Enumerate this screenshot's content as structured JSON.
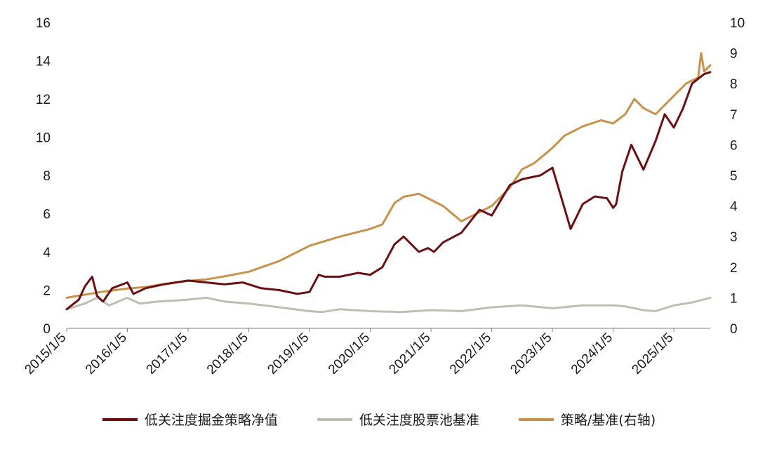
{
  "chart_data": {
    "type": "line",
    "title": "",
    "xlabel": "",
    "ylabel": "",
    "x_ticks": [
      "2015/1/5",
      "2016/1/5",
      "2017/1/5",
      "2018/1/5",
      "2019/1/5",
      "2020/1/5",
      "2021/1/5",
      "2022/1/5",
      "2023/1/5",
      "2024/1/5",
      "2025/1/5"
    ],
    "ylim_left": [
      0,
      16
    ],
    "yticks_left": [
      "0",
      "2",
      "4",
      "6",
      "8",
      "10",
      "12",
      "14",
      "16"
    ],
    "ylim_right": [
      0,
      10
    ],
    "yticks_right": [
      "0",
      "1",
      "2",
      "3",
      "4",
      "5",
      "6",
      "7",
      "8",
      "9",
      "10"
    ],
    "grid": false,
    "legend_position": "bottom",
    "series": [
      {
        "name": "低关注度掘金策略净值",
        "axis": "left",
        "color": "#6b0f13",
        "x": [
          2015.0,
          2015.2,
          2015.3,
          2015.42,
          2015.5,
          2015.6,
          2015.75,
          2016.0,
          2016.1,
          2016.3,
          2016.6,
          2017.0,
          2017.3,
          2017.6,
          2017.9,
          2018.2,
          2018.5,
          2018.8,
          2019.0,
          2019.15,
          2019.25,
          2019.5,
          2019.8,
          2020.0,
          2020.2,
          2020.4,
          2020.55,
          2020.8,
          2020.95,
          2021.05,
          2021.2,
          2021.5,
          2021.8,
          2022.0,
          2022.3,
          2022.5,
          2022.8,
          2023.0,
          2023.15,
          2023.3,
          2023.5,
          2023.7,
          2023.9,
          2024.0,
          2024.05,
          2024.15,
          2024.3,
          2024.5,
          2024.7,
          2024.85,
          2025.0,
          2025.15,
          2025.3,
          2025.5,
          2025.6
        ],
        "values": [
          1.0,
          1.5,
          2.2,
          2.7,
          1.7,
          1.4,
          2.1,
          2.4,
          1.8,
          2.1,
          2.3,
          2.5,
          2.4,
          2.3,
          2.4,
          2.1,
          2.0,
          1.8,
          1.9,
          2.8,
          2.7,
          2.7,
          2.9,
          2.8,
          3.2,
          4.4,
          4.8,
          4.0,
          4.2,
          4.0,
          4.5,
          5.0,
          6.2,
          5.9,
          7.5,
          7.8,
          8.0,
          8.4,
          6.8,
          5.2,
          6.5,
          6.9,
          6.8,
          6.3,
          6.5,
          8.2,
          9.6,
          8.3,
          9.8,
          11.2,
          10.5,
          11.5,
          12.8,
          13.3,
          13.4
        ]
      },
      {
        "name": "低关注度股票池基准",
        "axis": "left",
        "color": "#bebfb2",
        "x": [
          2015.0,
          2015.3,
          2015.5,
          2015.7,
          2016.0,
          2016.2,
          2016.5,
          2017.0,
          2017.3,
          2017.6,
          2018.0,
          2018.5,
          2019.0,
          2019.2,
          2019.5,
          2020.0,
          2020.5,
          2021.0,
          2021.5,
          2022.0,
          2022.5,
          2023.0,
          2023.5,
          2024.0,
          2024.2,
          2024.5,
          2024.7,
          2025.0,
          2025.3,
          2025.6
        ],
        "values": [
          1.0,
          1.3,
          1.6,
          1.2,
          1.6,
          1.3,
          1.4,
          1.5,
          1.6,
          1.4,
          1.3,
          1.1,
          0.9,
          0.85,
          1.0,
          0.9,
          0.85,
          0.95,
          0.9,
          1.1,
          1.2,
          1.05,
          1.2,
          1.2,
          1.15,
          0.95,
          0.9,
          1.2,
          1.35,
          1.6
        ]
      },
      {
        "name": "策略/基准(右轴)",
        "axis": "right",
        "color": "#c8924b",
        "x": [
          2015.0,
          2015.3,
          2015.6,
          2016.0,
          2016.3,
          2016.6,
          2017.0,
          2017.3,
          2017.6,
          2018.0,
          2018.5,
          2019.0,
          2019.5,
          2020.0,
          2020.2,
          2020.4,
          2020.55,
          2020.8,
          2021.0,
          2021.2,
          2021.5,
          2021.8,
          2022.0,
          2022.3,
          2022.5,
          2022.7,
          2023.0,
          2023.2,
          2023.5,
          2023.8,
          2024.0,
          2024.2,
          2024.35,
          2024.5,
          2024.7,
          2024.85,
          2025.0,
          2025.2,
          2025.4,
          2025.45,
          2025.5,
          2025.6
        ],
        "values": [
          1.0,
          1.1,
          1.2,
          1.3,
          1.35,
          1.45,
          1.55,
          1.6,
          1.7,
          1.85,
          2.2,
          2.7,
          3.0,
          3.25,
          3.4,
          4.1,
          4.3,
          4.4,
          4.2,
          4.0,
          3.5,
          3.8,
          4.0,
          4.6,
          5.2,
          5.4,
          5.9,
          6.3,
          6.6,
          6.8,
          6.7,
          7.0,
          7.5,
          7.2,
          7.0,
          7.3,
          7.6,
          8.0,
          8.2,
          9.0,
          8.4,
          8.6
        ]
      }
    ]
  }
}
